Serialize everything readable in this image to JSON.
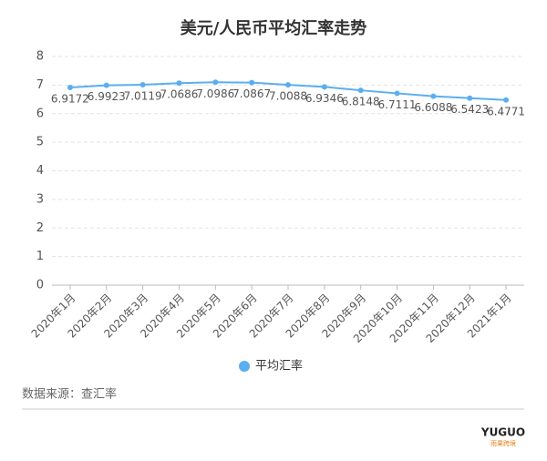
{
  "chart_data": {
    "type": "line",
    "title": "美元/人民币平均汇率走势",
    "categories": [
      "2020年1月",
      "2020年2月",
      "2020年3月",
      "2020年4月",
      "2020年5月",
      "2020年6月",
      "2020年7月",
      "2020年8月",
      "2020年9月",
      "2020年10月",
      "2020年11月",
      "2020年12月",
      "2021年1月"
    ],
    "series": [
      {
        "name": "平均汇率",
        "color": "#5aaef0",
        "values": [
          6.9172,
          6.9923,
          7.0119,
          7.0686,
          7.0986,
          7.0867,
          7.0088,
          6.9346,
          6.8148,
          6.7111,
          6.6088,
          6.5423,
          6.4771
        ]
      }
    ],
    "ylim": [
      0,
      8
    ],
    "yticks": [
      0,
      1,
      2,
      3,
      4,
      5,
      6,
      7,
      8
    ],
    "grid": true,
    "legend": "bottom"
  },
  "footer": {
    "source": "数据来源：查汇率",
    "logo": "YUGUO",
    "logo_subtitle": "雨果跨境"
  }
}
